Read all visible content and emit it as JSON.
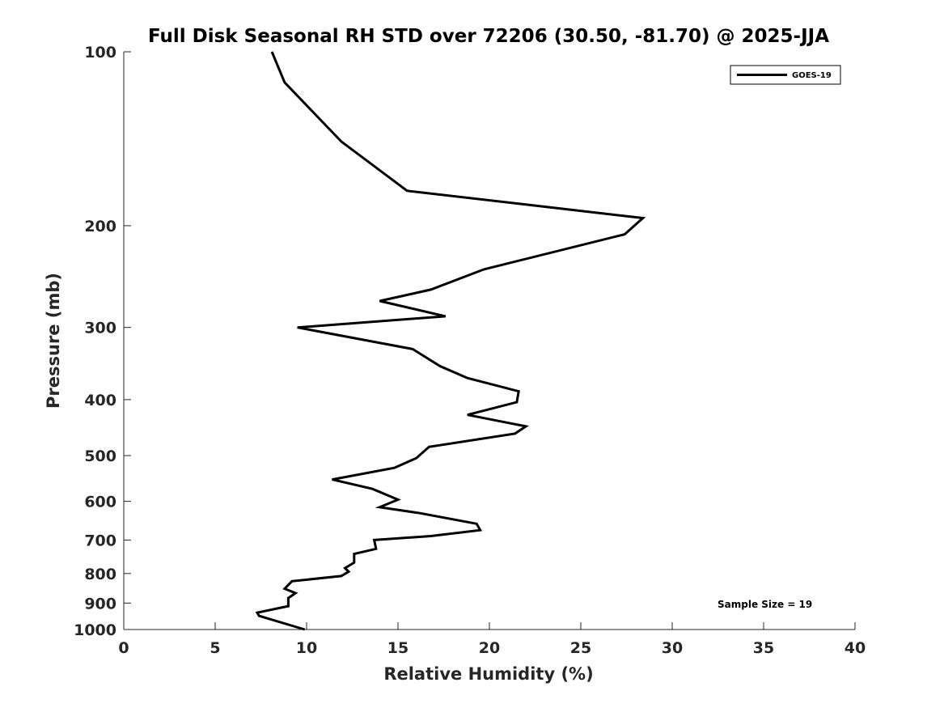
{
  "chart_data": {
    "type": "line",
    "title": "Full Disk Seasonal RH STD over 72206 (30.50, -81.70) @ 2025-JJA",
    "xlabel": "Relative Humidity (%)",
    "ylabel": "Pressure (mb)",
    "xlim": [
      0,
      40
    ],
    "ylim": [
      100,
      1000
    ],
    "y_scale": "log",
    "y_reversed": true,
    "grid": false,
    "legend_position": "top-right",
    "x_ticks": [
      0,
      5,
      10,
      15,
      20,
      25,
      30,
      35,
      40
    ],
    "x_tick_labels": [
      "0",
      "5",
      "10",
      "15",
      "20",
      "25",
      "30",
      "35",
      "40"
    ],
    "y_ticks": [
      100,
      200,
      300,
      400,
      500,
      600,
      700,
      800,
      900,
      1000
    ],
    "y_tick_labels": [
      "100",
      "200",
      "300",
      "400",
      "500",
      "600",
      "700",
      "800",
      "900",
      "1000"
    ],
    "annotation": "Sample Size = 19",
    "series": [
      {
        "name": "GOES-19",
        "color": "#000000",
        "x": [
          8.1,
          8.8,
          11.9,
          15.5,
          28.4,
          27.4,
          19.7,
          16.8,
          14.0,
          17.6,
          9.5,
          15.8,
          17.3,
          18.8,
          21.6,
          21.5,
          18.8,
          22.0,
          21.4,
          16.7,
          16.0,
          14.8,
          11.4,
          13.6,
          15.0,
          14.0,
          16.2,
          19.3,
          19.5,
          16.8,
          13.7,
          13.8,
          12.6,
          12.6,
          12.1,
          12.3,
          11.9,
          9.2,
          8.8,
          9.4,
          9.0,
          9.0,
          7.3,
          7.4,
          9.9
        ],
        "y": [
          100,
          113,
          143,
          174,
          194,
          207,
          238,
          258,
          270,
          287,
          300,
          327,
          350,
          367,
          387,
          404,
          425,
          445,
          458,
          483,
          505,
          525,
          550,
          571,
          596,
          614,
          629,
          656,
          673,
          689,
          700,
          725,
          740,
          766,
          783,
          794,
          808,
          825,
          850,
          865,
          882,
          911,
          935,
          947,
          1000
        ]
      }
    ]
  }
}
